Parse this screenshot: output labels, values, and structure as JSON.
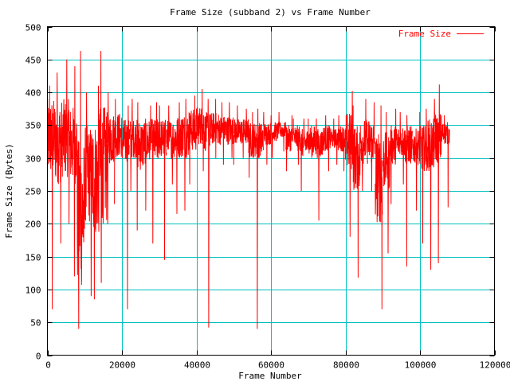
{
  "chart_data": {
    "type": "line",
    "title": "Frame Size (subband 2) vs Frame Number",
    "xlabel": "Frame Number",
    "ylabel": "Frame Size (Bytes)",
    "xlim": [
      0,
      120000
    ],
    "ylim": [
      0,
      500
    ],
    "xticks": [
      0,
      20000,
      40000,
      60000,
      80000,
      100000,
      120000
    ],
    "yticks": [
      0,
      50,
      100,
      150,
      200,
      250,
      300,
      350,
      400,
      450,
      500
    ],
    "grid": true,
    "legend_placement": "top-right",
    "colors": {
      "series": "#ff0000",
      "grid": "#00c0c0",
      "axis": "#000000"
    },
    "series": [
      {
        "name": "Frame Size",
        "bin_size_frames": 2000,
        "bin_columns": [
          "frame_start",
          "min",
          "typical_low",
          "typical_high",
          "max"
        ],
        "bins": [
          [
            0,
            70,
            270,
            390,
            410
          ],
          [
            2000,
            170,
            260,
            390,
            430
          ],
          [
            4000,
            200,
            270,
            390,
            450
          ],
          [
            6000,
            120,
            260,
            380,
            440
          ],
          [
            8000,
            40,
            100,
            330,
            463
          ],
          [
            10000,
            90,
            200,
            350,
            400
          ],
          [
            12000,
            85,
            180,
            360,
            410
          ],
          [
            14000,
            110,
            200,
            380,
            463
          ],
          [
            16000,
            200,
            290,
            370,
            400
          ],
          [
            18000,
            230,
            300,
            370,
            390
          ],
          [
            20000,
            70,
            290,
            360,
            380
          ],
          [
            22000,
            250,
            300,
            360,
            390
          ],
          [
            24000,
            190,
            280,
            360,
            385
          ],
          [
            26000,
            220,
            290,
            360,
            380
          ],
          [
            28000,
            170,
            290,
            360,
            385
          ],
          [
            30000,
            145,
            300,
            360,
            380
          ],
          [
            32000,
            260,
            300,
            360,
            380
          ],
          [
            34000,
            215,
            300,
            365,
            385
          ],
          [
            36000,
            220,
            300,
            370,
            390
          ],
          [
            38000,
            260,
            310,
            375,
            395
          ],
          [
            40000,
            280,
            320,
            380,
            405
          ],
          [
            42000,
            42,
            310,
            370,
            390
          ],
          [
            44000,
            300,
            320,
            370,
            390
          ],
          [
            46000,
            290,
            320,
            365,
            385
          ],
          [
            48000,
            300,
            320,
            365,
            385
          ],
          [
            50000,
            290,
            320,
            360,
            380
          ],
          [
            52000,
            300,
            320,
            360,
            375
          ],
          [
            54000,
            270,
            300,
            355,
            370
          ],
          [
            56000,
            40,
            300,
            355,
            375
          ],
          [
            58000,
            290,
            320,
            355,
            370
          ],
          [
            60000,
            300,
            325,
            355,
            365
          ],
          [
            62000,
            310,
            330,
            355,
            370
          ],
          [
            64000,
            280,
            310,
            350,
            365
          ],
          [
            66000,
            290,
            310,
            350,
            360
          ],
          [
            68000,
            250,
            300,
            345,
            360
          ],
          [
            70000,
            280,
            300,
            350,
            360
          ],
          [
            72000,
            205,
            300,
            345,
            360
          ],
          [
            74000,
            280,
            310,
            350,
            365
          ],
          [
            76000,
            290,
            315,
            345,
            360
          ],
          [
            78000,
            280,
            310,
            350,
            365
          ],
          [
            80000,
            180,
            280,
            370,
            402
          ],
          [
            82000,
            118,
            250,
            350,
            380
          ],
          [
            84000,
            250,
            290,
            360,
            390
          ],
          [
            86000,
            250,
            290,
            360,
            385
          ],
          [
            88000,
            70,
            200,
            340,
            380
          ],
          [
            90000,
            155,
            250,
            340,
            370
          ],
          [
            92000,
            230,
            290,
            350,
            375
          ],
          [
            94000,
            260,
            300,
            350,
            370
          ],
          [
            96000,
            135,
            290,
            350,
            365
          ],
          [
            98000,
            220,
            290,
            345,
            370
          ],
          [
            100000,
            170,
            280,
            350,
            375
          ],
          [
            102000,
            130,
            280,
            360,
            390
          ],
          [
            104000,
            140,
            290,
            370,
            412
          ],
          [
            106000,
            225,
            320,
            355,
            365
          ]
        ]
      }
    ]
  }
}
